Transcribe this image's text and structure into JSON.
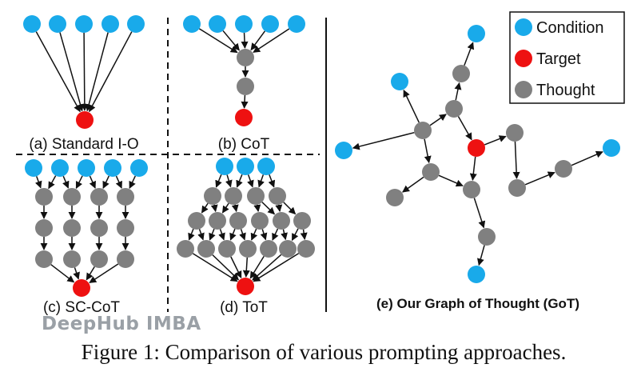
{
  "labels": {
    "a": "(a) Standard I-O",
    "b": "(b) CoT",
    "c": "(c) SC-CoT",
    "d": "(d) ToT",
    "e": "(e) Our Graph of Thought (GoT)"
  },
  "legend": {
    "condition": "Condition",
    "target": "Target",
    "thought": "Thought"
  },
  "caption": "Figure 1: Comparison of various prompting approaches.",
  "watermark": "DeepHub IMBA",
  "colors": {
    "condition": "#19aaea",
    "target": "#ee1111",
    "thought": "#808080",
    "edge": "#111111"
  }
}
